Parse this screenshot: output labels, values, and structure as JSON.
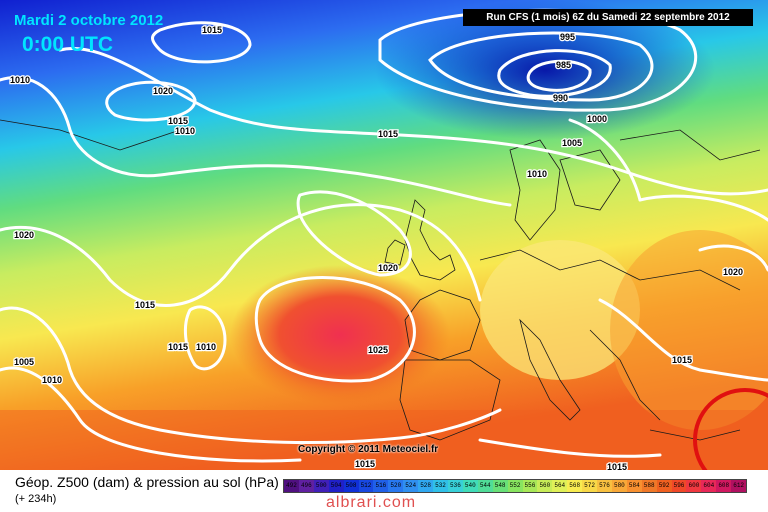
{
  "header": {
    "date": "Mardi 2 octobre 2012",
    "time": "0:00 UTC",
    "run": "Run CFS (1 mois) 6Z du Samedi 22 septembre 2012"
  },
  "map": {
    "copyright": "Copyright © 2011 Meteociel.fr",
    "isobar_labels": [
      "1015",
      "1010",
      "1020",
      "1015",
      "1010",
      "995",
      "985",
      "990",
      "1000",
      "1005",
      "1015",
      "1010",
      "1020",
      "1020",
      "1015",
      "1015",
      "1010",
      "1025",
      "1005",
      "1010",
      "1020",
      "1015",
      "1015",
      "1015"
    ],
    "colors": {
      "deep_blue": "#1020d0",
      "blue": "#2c6cf0",
      "cyan": "#28c8e8",
      "green": "#60dc80",
      "yellow_green": "#c8ec60",
      "yellow": "#f8e850",
      "orange": "#f8a028",
      "red_orange": "#f06020",
      "red": "#f03050",
      "isobar": "#ffffff"
    }
  },
  "footer": {
    "title": "Géop. Z500 (dam) & pression au sol (hPa)",
    "lead": "(+ 234h)",
    "watermark": "albrari.com",
    "legend_values": [
      "492",
      "496",
      "500",
      "504",
      "508",
      "512",
      "516",
      "520",
      "524",
      "528",
      "532",
      "536",
      "540",
      "544",
      "548",
      "552",
      "556",
      "560",
      "564",
      "568",
      "572",
      "576",
      "580",
      "584",
      "588",
      "592",
      "596",
      "600",
      "604",
      "608",
      "612"
    ],
    "legend_colors": [
      "#501080",
      "#6020a0",
      "#4020b8",
      "#2020c8",
      "#1030d8",
      "#1848e0",
      "#2060e8",
      "#2878f0",
      "#3090f0",
      "#30a8f0",
      "#30c0e8",
      "#38d0d8",
      "#40dcb8",
      "#50dc98",
      "#68e078",
      "#88e460",
      "#a8e858",
      "#c8ec58",
      "#e0f058",
      "#f8ec50",
      "#f8d848",
      "#f8c040",
      "#f8a838",
      "#f89030",
      "#f07828",
      "#f06020",
      "#f04828",
      "#f03840",
      "#e82858",
      "#d01860",
      "#b01060"
    ]
  }
}
